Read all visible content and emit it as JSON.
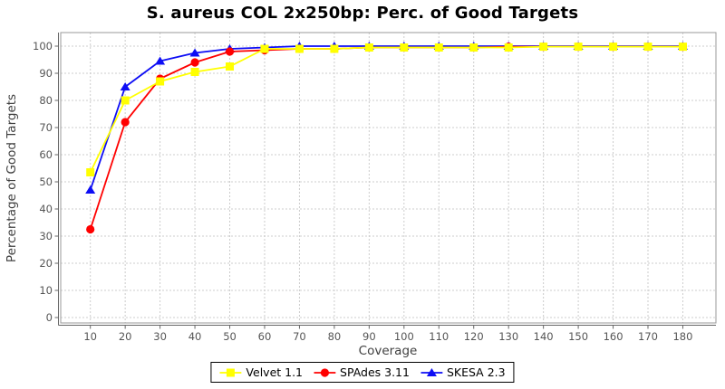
{
  "page": {
    "background": "#ffffff"
  },
  "chart_data": {
    "type": "line",
    "title": "S. aureus COL 2x250bp: Perc. of Good Targets",
    "xlabel": "Coverage",
    "ylabel": "Percentage of Good Targets",
    "x": [
      10,
      20,
      30,
      40,
      50,
      60,
      70,
      80,
      90,
      100,
      110,
      120,
      130,
      140,
      150,
      160,
      170,
      180
    ],
    "series": [
      {
        "name": "Velvet 1.1",
        "color": "#FFFF00",
        "marker": "square",
        "values": [
          53.5,
          80,
          87,
          90.5,
          92.5,
          99,
          99,
          99,
          99.5,
          99.5,
          99.5,
          99.5,
          99.5,
          99.8,
          99.8,
          99.8,
          99.8,
          99.8
        ]
      },
      {
        "name": "SPAdes 3.11",
        "color": "#FF0000",
        "marker": "circle",
        "values": [
          32.5,
          72,
          88,
          94,
          98,
          98.5,
          99,
          99,
          99.5,
          99.5,
          99.5,
          99.5,
          99.8,
          99.8,
          99.8,
          99.8,
          99.8,
          99.8
        ]
      },
      {
        "name": "SKESA 2.3",
        "color": "#0D0DF5",
        "marker": "triangle",
        "values": [
          47,
          85,
          94.5,
          97.5,
          99,
          99.5,
          100,
          100,
          100,
          100,
          100,
          100,
          100,
          100,
          100,
          100,
          100,
          100
        ]
      }
    ],
    "x_ticks": [
      10,
      20,
      30,
      40,
      50,
      60,
      70,
      80,
      90,
      100,
      110,
      120,
      130,
      140,
      150,
      160,
      170,
      180
    ],
    "y_ticks": [
      0,
      10,
      20,
      30,
      40,
      50,
      60,
      70,
      80,
      90,
      100
    ],
    "xlim": [
      1.5,
      189.5
    ],
    "ylim": [
      -2,
      105
    ],
    "grid": true,
    "legend_position": "bottom",
    "colors": {
      "title": "#000000",
      "grid": "#CCCCCC",
      "plot_border": "#9A9A9A",
      "axis_line": "#666666",
      "tick_label": "#555555",
      "axis_title": "#404040",
      "legend_border": "#000000"
    }
  }
}
